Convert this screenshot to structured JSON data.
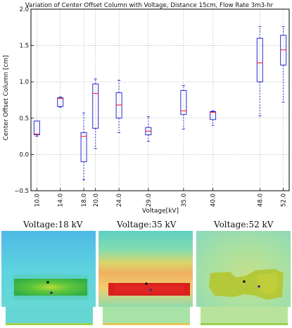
{
  "chart_data": {
    "type": "box",
    "title": "Variation of Center Offset Column with Voltage, Distance 15cm, Flow Rate 3m3-hr",
    "xlabel": "Voltage[kV]",
    "ylabel": "Center Offset Column [cm]",
    "xlim": [
      9,
      53
    ],
    "ylim": [
      -0.5,
      2.0
    ],
    "yticks": [
      "−0.5",
      "0.0",
      "0.5",
      "1.0",
      "1.5",
      "2.0"
    ],
    "xtick_labels": [
      "10.0",
      "14.0",
      "18.0",
      "20.0",
      "24.0",
      "29.0",
      "35.0",
      "40.0",
      "48.0",
      "52.0"
    ],
    "grid": true,
    "colors": {
      "box": "#2b2bd6",
      "median": "#ff3030",
      "whisker": "#2b2bd6",
      "flier": "#2b2bd6"
    },
    "boxes": [
      {
        "x": 10,
        "whislo": 0.25,
        "q1": 0.27,
        "med": 0.28,
        "q3": 0.46,
        "whishi": 0.46
      },
      {
        "x": 14,
        "whislo": 0.65,
        "q1": 0.66,
        "med": 0.77,
        "q3": 0.78,
        "whishi": 0.79
      },
      {
        "x": 18,
        "whislo": -0.35,
        "q1": -0.1,
        "med": 0.25,
        "q3": 0.3,
        "whishi": 0.57
      },
      {
        "x": 20,
        "whislo": 0.08,
        "q1": 0.36,
        "med": 0.84,
        "q3": 0.97,
        "whishi": 1.04
      },
      {
        "x": 24,
        "whislo": 0.3,
        "q1": 0.5,
        "med": 0.68,
        "q3": 0.85,
        "whishi": 1.02
      },
      {
        "x": 29,
        "whislo": 0.18,
        "q1": 0.27,
        "med": 0.32,
        "q3": 0.37,
        "whishi": 0.52
      },
      {
        "x": 35,
        "whislo": 0.35,
        "q1": 0.55,
        "med": 0.6,
        "q3": 0.88,
        "whishi": 0.95
      },
      {
        "x": 40,
        "whislo": 0.4,
        "q1": 0.48,
        "med": 0.58,
        "q3": 0.59,
        "whishi": 0.6
      },
      {
        "x": 48,
        "whislo": 0.53,
        "q1": 1.0,
        "med": 1.26,
        "q3": 1.6,
        "whishi": 1.76
      },
      {
        "x": 52,
        "whislo": 0.72,
        "q1": 1.23,
        "med": 1.44,
        "q3": 1.64,
        "whishi": 1.76
      }
    ]
  },
  "heatmaps": [
    {
      "caption_prefix": "Voltage:",
      "caption_value": "18",
      "caption_unit": " kV",
      "scheme": "green-blob"
    },
    {
      "caption_prefix": "Voltage:",
      "caption_value": "35",
      "caption_unit": " kV",
      "scheme": "red-band"
    },
    {
      "caption_prefix": "Voltage:",
      "caption_value": "52",
      "caption_unit": " kV",
      "scheme": "yellow-patch"
    }
  ]
}
